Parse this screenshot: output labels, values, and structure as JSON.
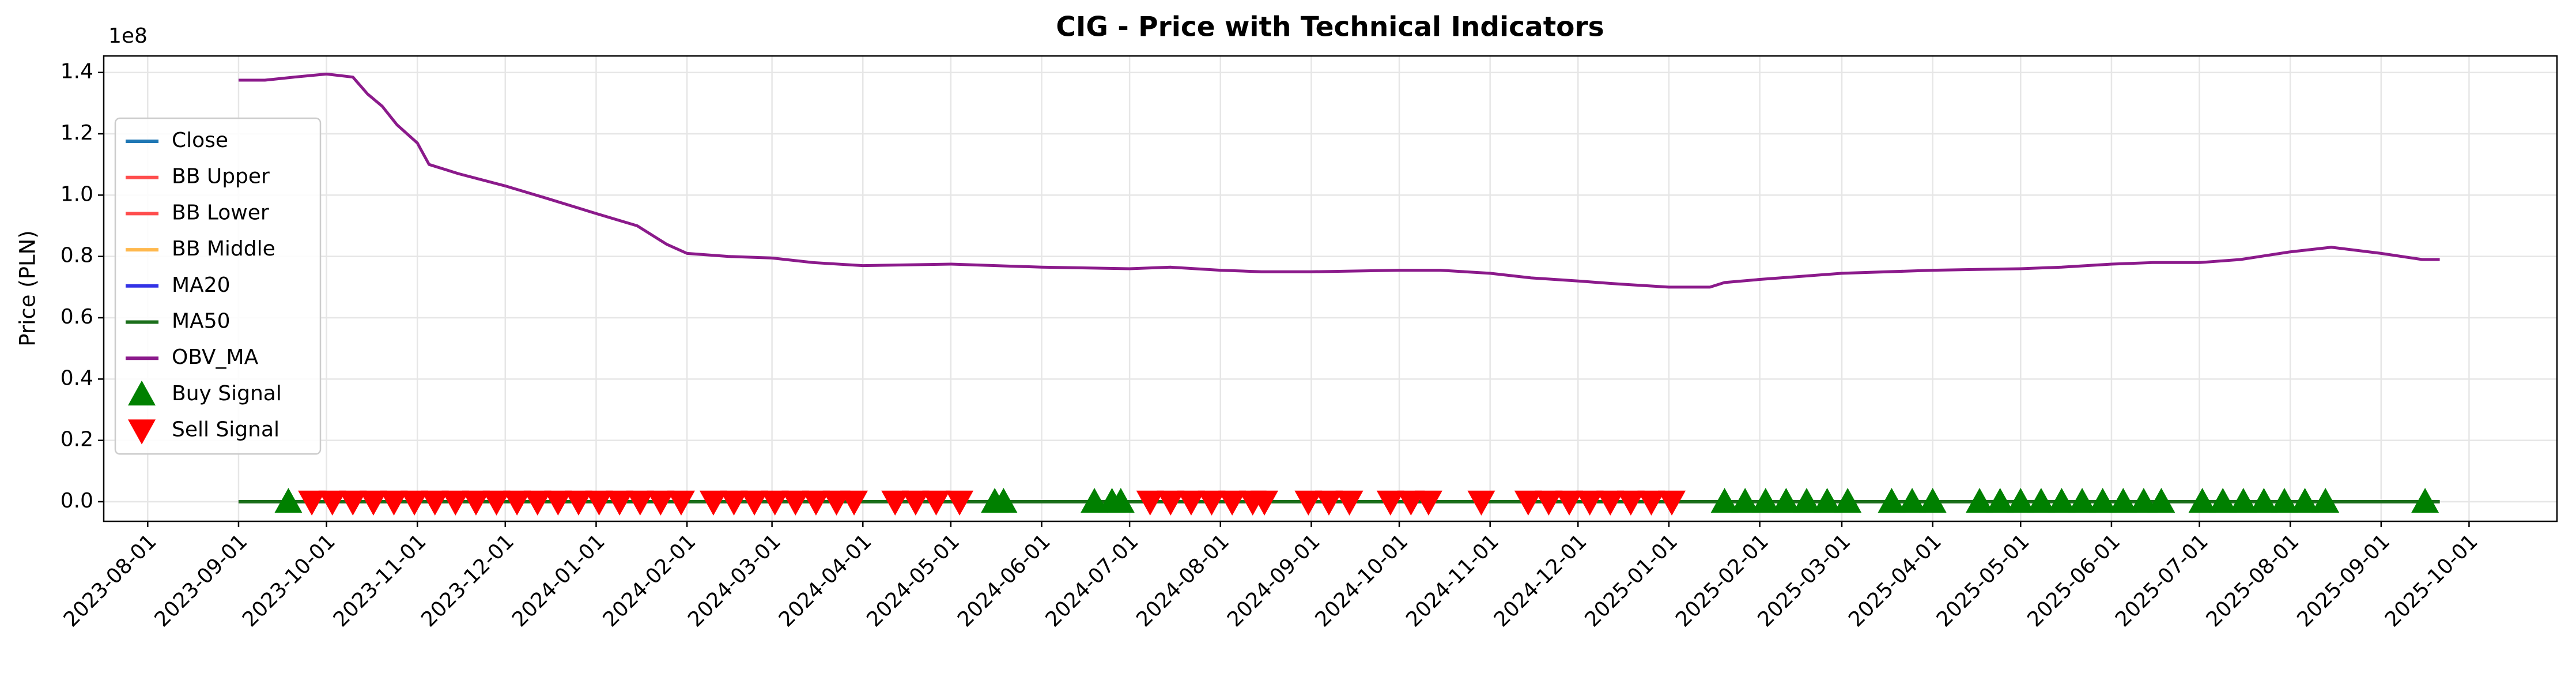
{
  "chart_data": {
    "type": "line",
    "title": "CIG - Price with Technical Indicators",
    "y_label": "Price (PLN)",
    "y_offset_label": "1e8",
    "xlim": [
      "2023-07-17",
      "2025-10-31"
    ],
    "xticks": [
      "2023-08-01",
      "2023-09-01",
      "2023-10-01",
      "2023-11-01",
      "2023-12-01",
      "2024-01-01",
      "2024-02-01",
      "2024-03-01",
      "2024-04-01",
      "2024-05-01",
      "2024-06-01",
      "2024-07-01",
      "2024-08-01",
      "2024-09-01",
      "2024-10-01",
      "2024-11-01",
      "2024-12-01",
      "2025-01-01",
      "2025-02-01",
      "2025-03-01",
      "2025-04-01",
      "2025-05-01",
      "2025-06-01",
      "2025-07-01",
      "2025-08-01",
      "2025-09-01",
      "2025-10-01"
    ],
    "ylim": [
      -0.064,
      1.454
    ],
    "yticks": [
      {
        "value": 0,
        "label": "0.0"
      },
      {
        "value": 0.2,
        "label": "0.2"
      },
      {
        "value": 0.4,
        "label": "0.4"
      },
      {
        "value": 0.6,
        "label": "0.6"
      },
      {
        "value": 0.8,
        "label": "0.8"
      },
      {
        "value": 1,
        "label": "1.0"
      },
      {
        "value": 1.2,
        "label": "1.2"
      },
      {
        "value": 1.4,
        "label": "1.4"
      }
    ],
    "grid": true,
    "legend": "upper left",
    "series": [
      {
        "name": "Close",
        "kind": "line",
        "color": "#1f77b4",
        "x": [
          "2023-09-01",
          "2025-09-21"
        ],
        "values": [
          0,
          0
        ]
      },
      {
        "name": "BB Upper",
        "kind": "line",
        "color": "#ff4d4d",
        "x": [
          "2023-09-01",
          "2025-09-21"
        ],
        "values": [
          0,
          0
        ]
      },
      {
        "name": "BB Lower",
        "kind": "line",
        "color": "#ff4d4d",
        "x": [
          "2023-09-01",
          "2025-09-21"
        ],
        "values": [
          0,
          0
        ]
      },
      {
        "name": "BB Middle",
        "kind": "line",
        "color": "#ffb84d",
        "x": [
          "2023-09-01",
          "2025-09-21"
        ],
        "values": [
          0,
          0
        ]
      },
      {
        "name": "MA20",
        "kind": "line",
        "color": "#3333e6",
        "x": [
          "2023-09-01",
          "2025-09-21"
        ],
        "values": [
          0,
          0
        ]
      },
      {
        "name": "MA50",
        "kind": "line",
        "color": "#1a6e1a",
        "x": [
          "2023-09-01",
          "2025-09-21"
        ],
        "values": [
          0,
          0
        ]
      },
      {
        "name": "OBV_MA",
        "kind": "line",
        "color": "#8b1a8b",
        "x": [
          "2023-09-01",
          "2023-09-10",
          "2023-09-20",
          "2023-10-01",
          "2023-10-10",
          "2023-10-15",
          "2023-10-20",
          "2023-10-25",
          "2023-11-01",
          "2023-11-05",
          "2023-11-15",
          "2023-12-01",
          "2023-12-15",
          "2024-01-01",
          "2024-01-15",
          "2024-01-25",
          "2024-02-01",
          "2024-02-15",
          "2024-03-01",
          "2024-03-15",
          "2024-04-01",
          "2024-05-01",
          "2024-06-01",
          "2024-07-01",
          "2024-07-15",
          "2024-08-01",
          "2024-08-15",
          "2024-09-01",
          "2024-10-01",
          "2024-10-15",
          "2024-11-01",
          "2024-11-15",
          "2024-12-01",
          "2024-12-15",
          "2025-01-01",
          "2025-01-15",
          "2025-01-20",
          "2025-02-01",
          "2025-02-15",
          "2025-03-01",
          "2025-04-01",
          "2025-05-01",
          "2025-05-15",
          "2025-06-01",
          "2025-06-15",
          "2025-07-01",
          "2025-07-15",
          "2025-08-01",
          "2025-08-15",
          "2025-09-01",
          "2025-09-15",
          "2025-09-21"
        ],
        "values": [
          1.375,
          1.375,
          1.385,
          1.395,
          1.385,
          1.33,
          1.29,
          1.23,
          1.17,
          1.1,
          1.07,
          1.03,
          0.99,
          0.94,
          0.9,
          0.84,
          0.81,
          0.8,
          0.795,
          0.78,
          0.77,
          0.775,
          0.765,
          0.76,
          0.765,
          0.755,
          0.75,
          0.75,
          0.755,
          0.755,
          0.745,
          0.73,
          0.72,
          0.71,
          0.7,
          0.7,
          0.715,
          0.725,
          0.735,
          0.745,
          0.755,
          0.76,
          0.765,
          0.775,
          0.78,
          0.78,
          0.79,
          0.815,
          0.83,
          0.81,
          0.79,
          0.79
        ]
      },
      {
        "name": "Buy Signal",
        "kind": "scatter",
        "marker": "up",
        "color": "#008000",
        "x": [
          "2023-09-18",
          "2024-05-16",
          "2024-05-19",
          "2024-06-19",
          "2024-06-25",
          "2024-06-28",
          "2025-01-20",
          "2025-01-27",
          "2025-02-03",
          "2025-02-10",
          "2025-02-17",
          "2025-02-24",
          "2025-03-03",
          "2025-03-18",
          "2025-03-25",
          "2025-04-01",
          "2025-04-17",
          "2025-04-24",
          "2025-05-01",
          "2025-05-08",
          "2025-05-15",
          "2025-05-22",
          "2025-05-29",
          "2025-06-05",
          "2025-06-12",
          "2025-06-18",
          "2025-07-02",
          "2025-07-09",
          "2025-07-16",
          "2025-07-23",
          "2025-07-30",
          "2025-08-06",
          "2025-08-13",
          "2025-09-16"
        ],
        "values": [
          0,
          0,
          0,
          0,
          0,
          0,
          0,
          0,
          0,
          0,
          0,
          0,
          0,
          0,
          0,
          0,
          0,
          0,
          0,
          0,
          0,
          0,
          0,
          0,
          0,
          0,
          0,
          0,
          0,
          0,
          0,
          0,
          0,
          0
        ]
      },
      {
        "name": "Sell Signal",
        "kind": "scatter",
        "marker": "down",
        "color": "#ff0000",
        "x": [
          "2023-09-26",
          "2023-10-03",
          "2023-10-10",
          "2023-10-17",
          "2023-10-24",
          "2023-10-31",
          "2023-11-07",
          "2023-11-14",
          "2023-11-21",
          "2023-11-28",
          "2023-12-05",
          "2023-12-12",
          "2023-12-19",
          "2023-12-26",
          "2024-01-02",
          "2024-01-09",
          "2024-01-16",
          "2024-01-23",
          "2024-01-30",
          "2024-02-10",
          "2024-02-17",
          "2024-02-24",
          "2024-03-02",
          "2024-03-09",
          "2024-03-16",
          "2024-03-23",
          "2024-03-29",
          "2024-04-12",
          "2024-04-19",
          "2024-04-26",
          "2024-05-04",
          "2024-07-08",
          "2024-07-15",
          "2024-07-22",
          "2024-07-29",
          "2024-08-05",
          "2024-08-12",
          "2024-08-16",
          "2024-08-31",
          "2024-09-07",
          "2024-09-14",
          "2024-09-28",
          "2024-10-05",
          "2024-10-11",
          "2024-10-29",
          "2024-11-14",
          "2024-11-21",
          "2024-11-28",
          "2024-12-05",
          "2024-12-12",
          "2024-12-19",
          "2024-12-26",
          "2025-01-02"
        ],
        "values": [
          0,
          0,
          0,
          0,
          0,
          0,
          0,
          0,
          0,
          0,
          0,
          0,
          0,
          0,
          0,
          0,
          0,
          0,
          0,
          0,
          0,
          0,
          0,
          0,
          0,
          0,
          0,
          0,
          0,
          0,
          0,
          0,
          0,
          0,
          0,
          0,
          0,
          0,
          0,
          0,
          0,
          0,
          0,
          0,
          0,
          0,
          0,
          0,
          0,
          0,
          0,
          0,
          0
        ]
      }
    ]
  }
}
